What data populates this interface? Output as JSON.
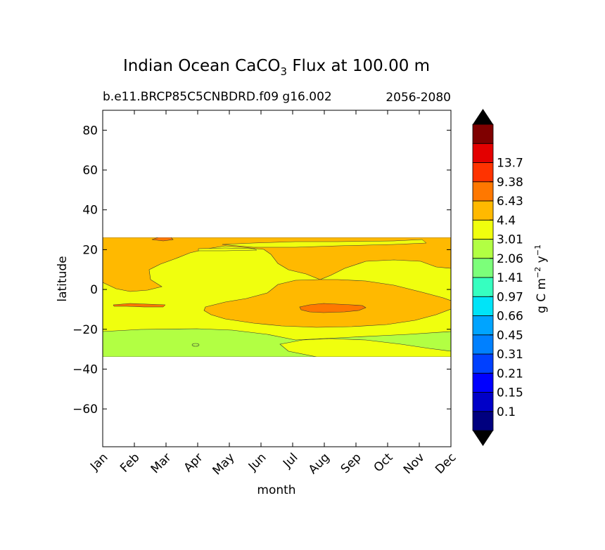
{
  "chart_data": {
    "type": "contour",
    "title": "Indian Ocean CaCO",
    "title_subscript": "3",
    "title_suffix": " Flux at 100.00 m",
    "subtitle_left": "b.e11.BRCP85C5CNBDRD.f09 g16.002",
    "subtitle_right": "2056-2080",
    "xlabel": "month",
    "ylabel": "latitude",
    "x_ticks": [
      "Jan",
      "Feb",
      "Mar",
      "Apr",
      "May",
      "Jun",
      "Jul",
      "Aug",
      "Sep",
      "Oct",
      "Nov",
      "Dec"
    ],
    "y_ticks": [
      80,
      60,
      40,
      20,
      0,
      -20,
      -40,
      -60
    ],
    "y_tick_labels": [
      "80",
      "60",
      "40",
      "20",
      "0",
      "−20",
      "−40",
      "−60"
    ],
    "ylim": [
      -79,
      90
    ],
    "data_lat_range": [
      -34,
      26
    ],
    "colorbar": {
      "label_main": "g C m",
      "label_exp1": "−2",
      "label_mid": " y",
      "label_exp2": "−1",
      "levels": [
        "0.1",
        "0.15",
        "0.21",
        "0.31",
        "0.45",
        "0.66",
        "0.97",
        "1.41",
        "2.06",
        "3.01",
        "4.4",
        "6.43",
        "9.38",
        "13.7"
      ],
      "colors": [
        "#00007f",
        "#0000c8",
        "#0000ff",
        "#0040ff",
        "#0080ff",
        "#00a4ff",
        "#00e4f8",
        "#36ffc0",
        "#7cff7a",
        "#b2ff43",
        "#f0ff0e",
        "#ffb900",
        "#ff7800",
        "#ff3300",
        "#e30000",
        "#7f0000"
      ],
      "extend": "both"
    },
    "regions": [
      {
        "level_range": "2.06-3.01",
        "color": "#b2ff43",
        "description": "southern band"
      },
      {
        "level_range": "3.01-4.4",
        "color": "#f0ff0e",
        "description": "middle band"
      },
      {
        "level_range": "4.4-6.43",
        "color": "#ffb900",
        "description": "north and equatorial patches"
      },
      {
        "level_range": "6.43-9.38",
        "color": "#ff7800",
        "description": "small maxima"
      }
    ]
  }
}
